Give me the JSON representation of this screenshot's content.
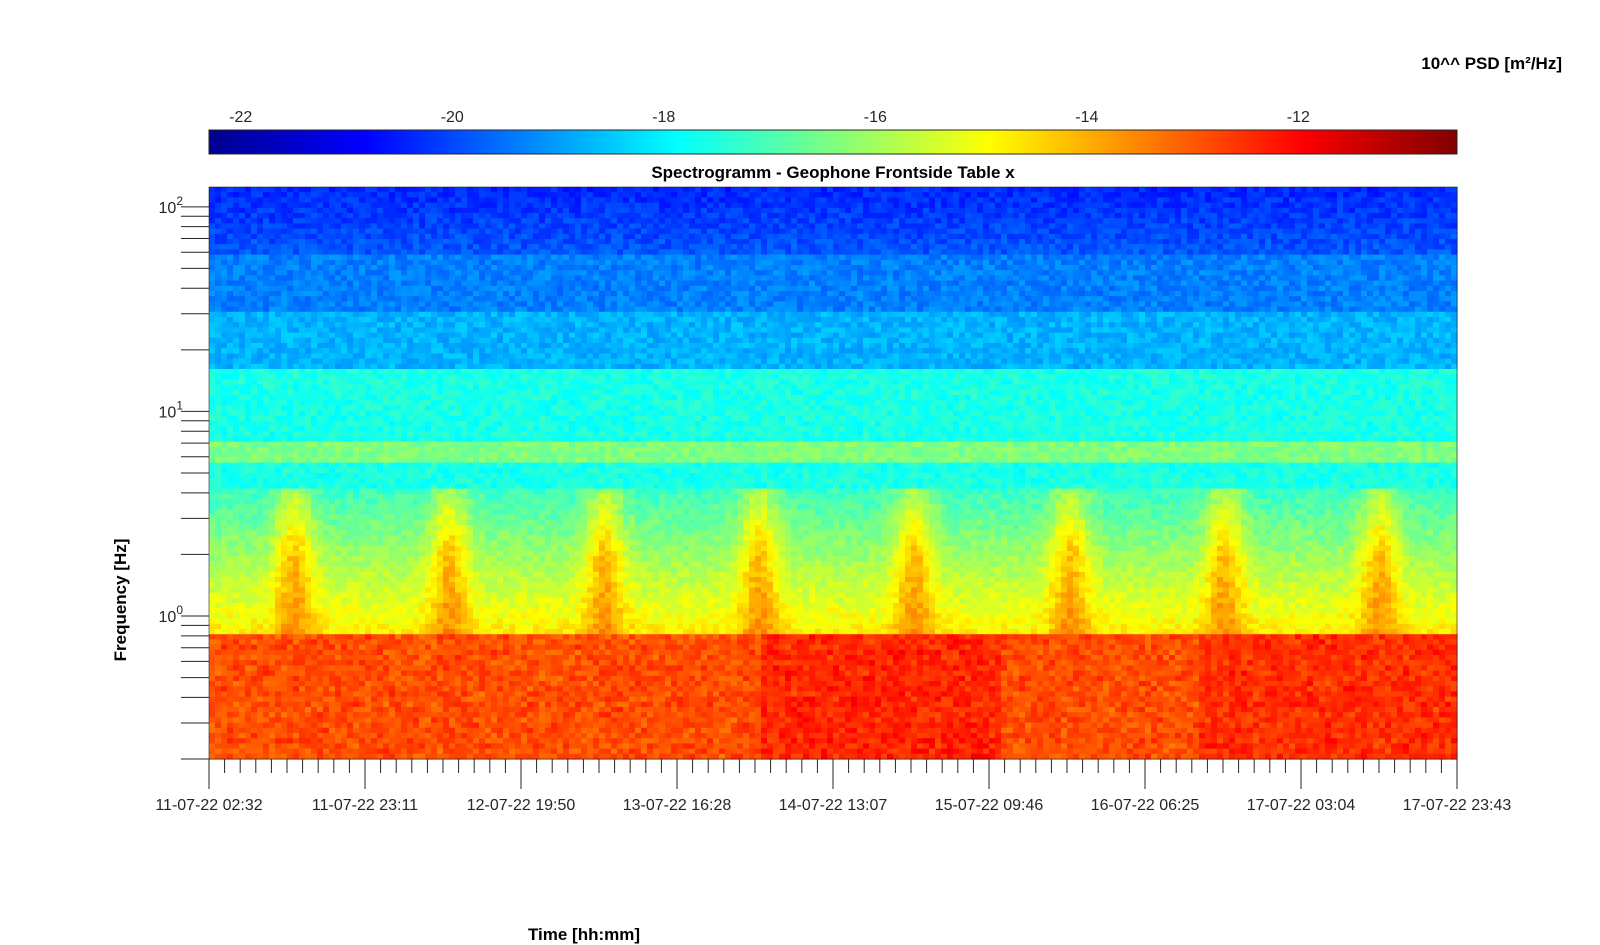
{
  "chart_data": {
    "type": "heatmap",
    "title": "Spectrogramm - Geophone Frontside Table x",
    "xlabel": "Time [hh:mm]",
    "ylabel": "Frequency [Hz]",
    "y_scale": "log",
    "ylim": [
      0.2,
      125
    ],
    "y_ticks": [
      {
        "base": "10",
        "exp": "0",
        "value": 1
      },
      {
        "base": "10",
        "exp": "1",
        "value": 10
      },
      {
        "base": "10",
        "exp": "2",
        "value": 100
      }
    ],
    "x_ticks": [
      "11-07-22 02:32",
      "11-07-22 23:11",
      "12-07-22 19:50",
      "13-07-22 16:28",
      "14-07-22 13:07",
      "15-07-22 09:46",
      "16-07-22 06:25",
      "17-07-22 03:04",
      "17-07-22 23:43"
    ],
    "colorbar": {
      "label": "10^^ PSD [m²/Hz]",
      "ticks": [
        "-22",
        "-20",
        "-18",
        "-16",
        "-14",
        "-12"
      ],
      "tick_values": [
        -22,
        -20,
        -18,
        -16,
        -14,
        -12
      ],
      "range": [
        -22.3,
        -10.5
      ],
      "colormap": "jet"
    },
    "description_bands": [
      {
        "freq_range": [
          30,
          125
        ],
        "psd_log10": -20.5
      },
      {
        "freq_range": [
          16,
          30
        ],
        "psd_log10": -19.0
      },
      {
        "freq_range": [
          5,
          16
        ],
        "psd_log10": -17.5
      },
      {
        "freq_range": [
          0.8,
          5
        ],
        "psd_log10": -16.0
      },
      {
        "freq_range": [
          0.2,
          0.8
        ],
        "psd_log10": -12.5
      }
    ],
    "grid": false,
    "legend": "colorbar-top"
  }
}
